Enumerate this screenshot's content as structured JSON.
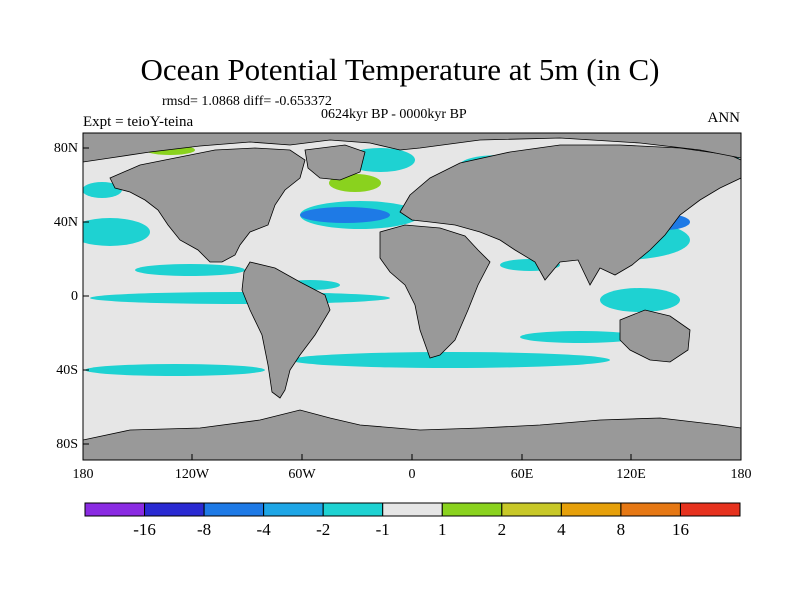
{
  "title": "Ocean Potential Temperature at 5m (in C)",
  "stats": "rmsd= 1.0868  diff= -0.653372",
  "period": "0624kyr BP - 0000kyr BP",
  "experiment": "Expt = teioY-teina",
  "season": "ANN",
  "lat_ticks": [
    "80N",
    "40N",
    "0",
    "40S",
    "80S"
  ],
  "lon_ticks": [
    "180",
    "120W",
    "60W",
    "0",
    "60E",
    "120E",
    "180"
  ],
  "colorbar": {
    "colors": [
      "#8a2be2",
      "#2a2ad2",
      "#1e7ae6",
      "#1ea6e6",
      "#1ed2d2",
      "#e6e6e6",
      "#8ad21e",
      "#c8c828",
      "#e6a00a",
      "#e67814",
      "#e6321e"
    ],
    "labels": [
      "-16",
      "-8",
      "-4",
      "-2",
      "-1",
      "1",
      "2",
      "4",
      "8",
      "16"
    ]
  },
  "map_colors": {
    "ocean": "#e6e6e6",
    "land": "#999999"
  }
}
